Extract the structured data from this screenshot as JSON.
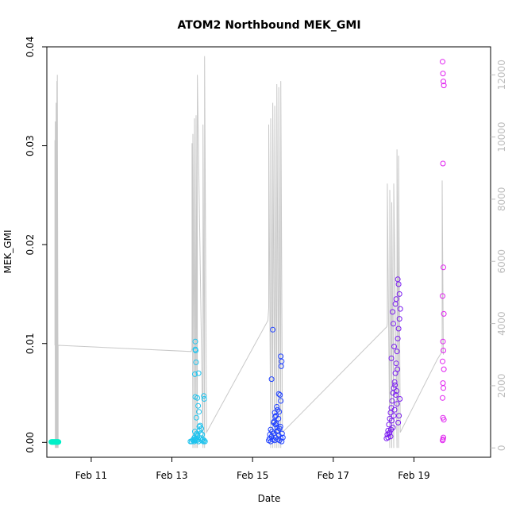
{
  "chart_data": {
    "type": "scatter",
    "title": "ATOM2 Northbound MEK_GMI",
    "xlabel": "Date",
    "ylabel": "MEK_GMI",
    "x_ticks": [
      "Feb 11",
      "Feb 13",
      "Feb 15",
      "Feb 17",
      "Feb 19"
    ],
    "x_tick_days": [
      11,
      13,
      15,
      17,
      19
    ],
    "xlim_days": [
      9.9,
      20.9
    ],
    "left_axis": {
      "ylim": [
        -0.0015,
        0.04
      ],
      "ticks": [
        0.0,
        0.01,
        0.02,
        0.03,
        0.04
      ],
      "tick_labels": [
        "0.00",
        "0.01",
        "0.02",
        "0.03",
        "0.04"
      ]
    },
    "right_axis": {
      "ylim": [
        -300,
        12900
      ],
      "ticks": [
        0,
        2000,
        4000,
        6000,
        8000,
        10000,
        12000
      ],
      "tick_labels": [
        "0",
        "2000",
        "4000",
        "6000",
        "8000",
        "10000",
        "12000"
      ],
      "color": "#bdbdbd"
    },
    "line_series": {
      "axis": "right",
      "color": "#c8c8c8",
      "x_days": [
        10.1,
        10.1,
        10.11,
        10.11,
        10.13,
        10.13,
        10.15,
        10.15,
        10.16,
        10.16,
        10.18,
        10.18,
        10.19,
        13.48,
        13.5,
        13.5,
        13.52,
        13.52,
        13.56,
        13.56,
        13.6,
        13.6,
        13.63,
        13.63,
        13.77,
        13.77,
        13.81,
        13.81,
        13.86,
        15.38,
        15.4,
        15.4,
        15.45,
        15.45,
        15.5,
        15.5,
        15.55,
        15.55,
        15.6,
        15.6,
        15.65,
        15.65,
        15.7,
        15.7,
        15.74,
        18.33,
        18.34,
        18.34,
        18.4,
        18.4,
        18.45,
        18.45,
        18.5,
        18.5,
        18.58,
        18.58,
        18.62,
        18.62,
        18.66,
        19.58,
        19.7,
        19.7,
        19.73
      ],
      "y_values": [
        3300,
        9900,
        0,
        10500,
        0,
        11100,
        0,
        11800,
        0,
        12000,
        0,
        3300,
        3300,
        3100,
        3200,
        9800,
        0,
        10100,
        0,
        10600,
        0,
        10700,
        0,
        12000,
        0,
        10400,
        0,
        12600,
        500,
        4100,
        4500,
        10400,
        0,
        10600,
        0,
        11100,
        0,
        11000,
        0,
        11700,
        0,
        11600,
        0,
        11800,
        500,
        3900,
        4000,
        8500,
        0,
        8300,
        0,
        7900,
        0,
        8500,
        0,
        9600,
        0,
        9400,
        500,
        2850,
        3100,
        8600,
        3000
      ]
    },
    "series": [
      {
        "color": "#00f0c8",
        "x_days": [
          10.01,
          10.02,
          10.03,
          10.04,
          10.05,
          10.06,
          10.07,
          10.08,
          10.09,
          10.1,
          10.11,
          10.12,
          10.13,
          10.14,
          10.15,
          10.16,
          10.17,
          10.18,
          10.19
        ],
        "y_values": [
          5e-05,
          5e-05,
          5e-05,
          5e-05,
          5e-05,
          5e-05,
          5e-05,
          5e-05,
          5e-05,
          5e-05,
          5e-05,
          5e-05,
          5e-05,
          5e-05,
          5e-05,
          5e-05,
          5e-05,
          5e-05,
          5e-05
        ]
      },
      {
        "color": "#1ec3ee",
        "x_days": [
          13.46,
          13.49,
          13.52,
          13.53,
          13.55,
          13.56,
          13.57,
          13.58,
          13.6,
          13.61,
          13.62,
          13.63,
          13.65,
          13.66,
          13.68,
          13.7,
          13.72,
          13.74,
          13.76,
          13.78,
          13.8,
          13.82,
          13.58,
          13.58,
          13.59,
          13.6,
          13.57,
          13.58,
          13.63,
          13.66,
          13.65,
          13.61,
          13.67,
          13.79,
          13.8,
          13.57,
          13.68,
          13.7,
          13.73,
          13.62,
          13.75
        ],
        "y_values": [
          0.0001,
          0.0001,
          0.0002,
          0.0003,
          0.0001,
          0.0005,
          0.0002,
          0.0003,
          0.0008,
          0.0004,
          0.0002,
          0.0006,
          0.0003,
          0.0001,
          0.0012,
          0.0004,
          0.0009,
          0.0002,
          0.0003,
          0.0001,
          0.0002,
          0.0001,
          0.0102,
          0.0094,
          0.0093,
          0.0081,
          0.0069,
          0.0046,
          0.0045,
          0.007,
          0.0037,
          0.0025,
          0.0031,
          0.0047,
          0.0044,
          0.0011,
          0.0016,
          0.0017,
          0.0014,
          0.0009,
          0.0008
        ]
      },
      {
        "color": "#1f41ff",
        "x_days": [
          15.4,
          15.42,
          15.45,
          15.47,
          15.5,
          15.52,
          15.55,
          15.57,
          15.6,
          15.62,
          15.65,
          15.67,
          15.7,
          15.72,
          15.5,
          15.47,
          15.7,
          15.72,
          15.71,
          15.65,
          15.68,
          15.7,
          15.6,
          15.62,
          15.55,
          15.58,
          15.66,
          15.64,
          15.53,
          15.57,
          15.61,
          15.45,
          15.48,
          15.69,
          15.73,
          15.63,
          15.43,
          15.75,
          15.52,
          15.56,
          15.59,
          15.67
        ],
        "y_values": [
          0.0002,
          0.0004,
          0.0001,
          0.0006,
          0.0003,
          0.0009,
          0.0002,
          0.0005,
          0.0011,
          0.0003,
          0.0007,
          0.0002,
          0.0004,
          0.0001,
          0.0114,
          0.0064,
          0.0087,
          0.0082,
          0.0077,
          0.0049,
          0.0048,
          0.0042,
          0.0036,
          0.0033,
          0.003,
          0.0027,
          0.0031,
          0.0024,
          0.0021,
          0.0018,
          0.0015,
          0.0013,
          0.0011,
          0.0016,
          0.0009,
          0.0012,
          0.0008,
          0.0005,
          0.002,
          0.0026,
          0.0019,
          0.0014
        ]
      },
      {
        "color": "#7b1cf0",
        "x_days": [
          18.32,
          18.34,
          18.36,
          18.38,
          18.4,
          18.42,
          18.44,
          18.46,
          18.48,
          18.5,
          18.52,
          18.54,
          18.56,
          18.58,
          18.6,
          18.62,
          18.64,
          18.66,
          18.54,
          18.56,
          18.6,
          18.62,
          18.64,
          18.45,
          18.5,
          18.52,
          18.58,
          18.55,
          18.57,
          18.48,
          18.4,
          18.42,
          18.61,
          18.63,
          18.53,
          18.51,
          18.49,
          18.47,
          18.44,
          18.38,
          18.36,
          18.59,
          18.65,
          18.43
        ],
        "y_values": [
          0.0004,
          0.0008,
          0.0012,
          0.0018,
          0.0024,
          0.003,
          0.0035,
          0.0042,
          0.005,
          0.0055,
          0.0061,
          0.007,
          0.008,
          0.0092,
          0.0105,
          0.0115,
          0.0125,
          0.0135,
          0.014,
          0.0145,
          0.0165,
          0.016,
          0.015,
          0.0022,
          0.0027,
          0.0033,
          0.0039,
          0.0048,
          0.0052,
          0.0015,
          0.001,
          0.0006,
          0.002,
          0.0027,
          0.0058,
          0.0097,
          0.012,
          0.0132,
          0.0085,
          0.0009,
          0.0005,
          0.0074,
          0.0044,
          0.0013
        ]
      },
      {
        "color": "#e020f0",
        "x_days": [
          19.71,
          19.72,
          19.73,
          19.74,
          19.72,
          19.73,
          19.71,
          19.74,
          19.72,
          19.73,
          19.71,
          19.74,
          19.72,
          19.73,
          19.71,
          19.72,
          19.74,
          19.73,
          19.72,
          19.71
        ],
        "y_values": [
          0.0385,
          0.0373,
          0.0365,
          0.0361,
          0.0282,
          0.0177,
          0.0148,
          0.013,
          0.0102,
          0.0093,
          0.0082,
          0.0074,
          0.006,
          0.0055,
          0.0045,
          0.0025,
          0.0023,
          0.0005,
          0.0003,
          0.0002
        ]
      }
    ]
  }
}
